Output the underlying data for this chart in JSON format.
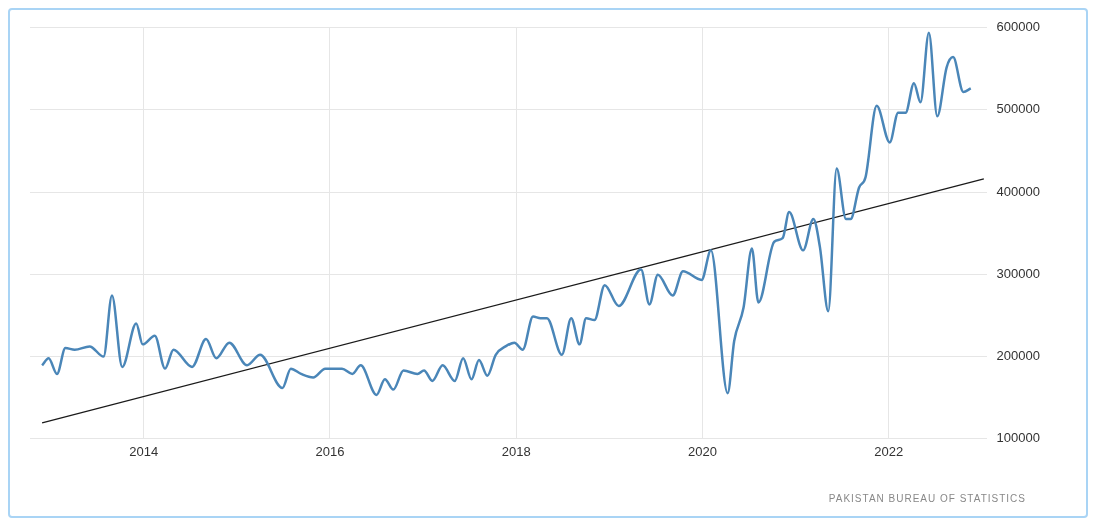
{
  "chart_data": {
    "type": "line",
    "xlim": [
      2012.78,
      2023.05
    ],
    "xticks": [
      2014,
      2016,
      2018,
      2020,
      2022
    ],
    "ylim": [
      100000,
      600000
    ],
    "yticks": [
      100000,
      200000,
      300000,
      400000,
      500000,
      600000
    ],
    "grid": true,
    "legend": false,
    "marker": "none",
    "x": [
      2012.91,
      2012.98,
      2013.07,
      2013.16,
      2013.26,
      2013.42,
      2013.57,
      2013.66,
      2013.77,
      2013.92,
      2013.99,
      2014.12,
      2014.23,
      2014.32,
      2014.52,
      2014.67,
      2014.78,
      2014.92,
      2015.11,
      2015.25,
      2015.49,
      2015.58,
      2015.69,
      2015.82,
      2015.95,
      2016.13,
      2016.24,
      2016.33,
      2016.5,
      2016.59,
      2016.68,
      2016.79,
      2016.94,
      2017.01,
      2017.1,
      2017.21,
      2017.34,
      2017.43,
      2017.52,
      2017.6,
      2017.69,
      2017.78,
      2017.89,
      2017.98,
      2018.07,
      2018.18,
      2018.26,
      2018.33,
      2018.49,
      2018.59,
      2018.68,
      2018.75,
      2018.84,
      2018.95,
      2019.1,
      2019.34,
      2019.43,
      2019.52,
      2019.68,
      2019.79,
      2019.99,
      2020.09,
      2020.27,
      2020.34,
      2020.44,
      2020.53,
      2020.6,
      2020.77,
      2020.86,
      2020.93,
      2021.08,
      2021.19,
      2021.26,
      2021.35,
      2021.44,
      2021.54,
      2021.59,
      2021.68,
      2021.75,
      2021.87,
      2022.01,
      2022.1,
      2022.18,
      2022.27,
      2022.34,
      2022.43,
      2022.52,
      2022.62,
      2022.69,
      2022.8,
      2022.88
    ],
    "series": [
      {
        "color": "#4a86b8",
        "values": [
          189000,
          197600,
          178500,
          210000,
          208000,
          212000,
          199600,
          274000,
          187000,
          240000,
          214500,
          225000,
          185000,
          208000,
          187000,
          221000,
          197600,
          216600,
          189000,
          201800,
          161400,
          184800,
          178500,
          174200,
          184800,
          184800,
          178500,
          189000,
          153000,
          172000,
          159400,
          182700,
          178500,
          182700,
          170000,
          189000,
          170000,
          197600,
          172000,
          195400,
          176300,
          201800,
          212300,
          216600,
          208000,
          248400,
          246300,
          246300,
          201800,
          246300,
          214500,
          246300,
          244100,
          286600,
          261200,
          305700,
          263200,
          299300,
          274000,
          303500,
          293000,
          329000,
          155000,
          218700,
          259000,
          331100,
          265400,
          339500,
          343800,
          375600,
          329000,
          367100,
          333200,
          254800,
          428600,
          367100,
          367100,
          405300,
          418000,
          505000,
          460400,
          496500,
          496500,
          532500,
          509200,
          594000,
          492200,
          551600,
          564300,
          521900,
          526100
        ]
      },
      {
        "type": "line",
        "color": "#1a1a1a",
        "x": [
          2012.91,
          2023.02
        ],
        "values": [
          119000,
          416000
        ]
      }
    ],
    "annotations": [
      "PAKISTAN BUREAU OF STATISTICS"
    ]
  }
}
